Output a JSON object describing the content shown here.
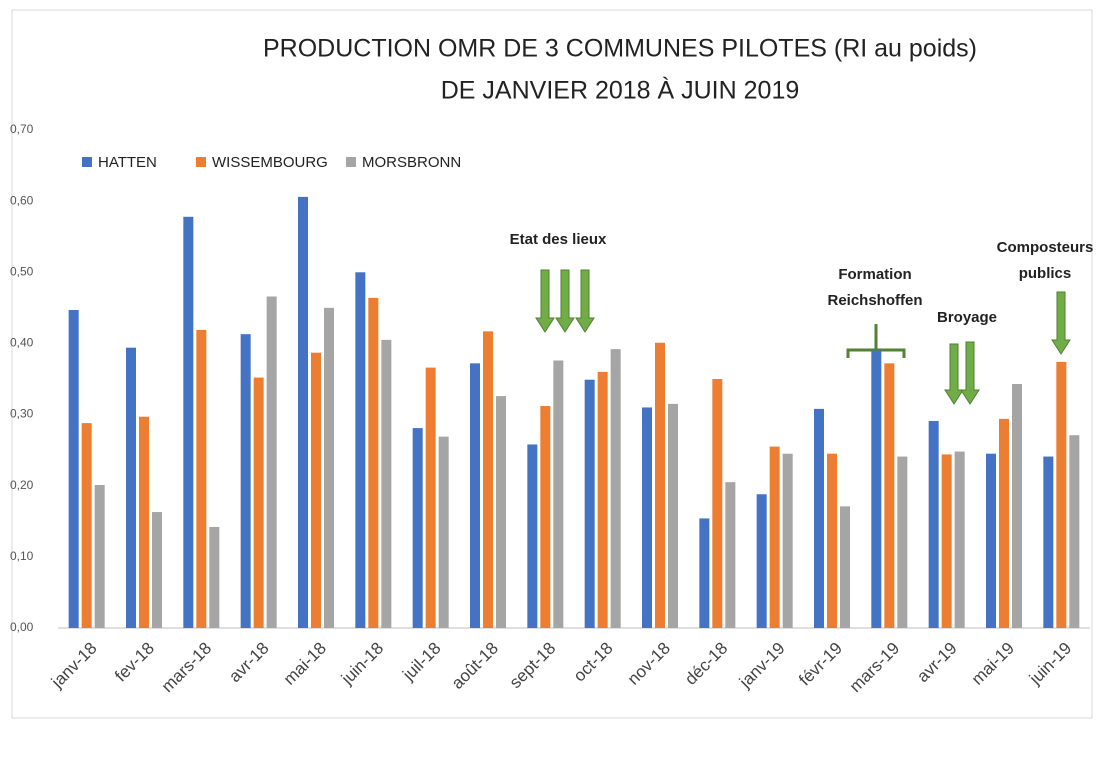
{
  "chart_data": {
    "type": "bar",
    "title": [
      "PRODUCTION OMR DE 3 COMMUNES PILOTES (RI au poids)",
      "DE JANVIER 2018 À JUIN 2019"
    ],
    "categories": [
      "janv-18",
      "fev-18",
      "mars-18",
      "avr-18",
      "mai-18",
      "juin-18",
      "juil-18",
      "août-18",
      "sept-18",
      "oct-18",
      "nov-18",
      "déc-18",
      "janv-19",
      "févr-19",
      "mars-19",
      "avr-19",
      "mai-19",
      "juin-19"
    ],
    "series": [
      {
        "name": "HATTEN",
        "color": "#4472c4",
        "values": [
          0.447,
          0.394,
          0.578,
          0.413,
          0.606,
          0.5,
          0.281,
          0.372,
          0.258,
          0.349,
          0.31,
          0.154,
          0.188,
          0.308,
          0.39,
          0.291,
          0.245,
          0.241
        ]
      },
      {
        "name": "WISSEMBOURG",
        "color": "#ed7d31",
        "values": [
          0.288,
          0.297,
          0.419,
          0.352,
          0.387,
          0.464,
          0.366,
          0.417,
          0.312,
          0.36,
          0.401,
          0.35,
          0.255,
          0.245,
          0.372,
          0.244,
          0.294,
          0.374
        ]
      },
      {
        "name": "MORSBRONN",
        "color": "#a5a5a5",
        "values": [
          0.201,
          0.163,
          0.142,
          0.466,
          0.45,
          0.405,
          0.269,
          0.326,
          0.376,
          0.392,
          0.315,
          0.205,
          0.245,
          0.171,
          0.241,
          0.248,
          0.343,
          0.271
        ]
      }
    ],
    "ylim": [
      0,
      0.7
    ],
    "yticks": [
      {
        "value": 0,
        "label": "0,00"
      },
      {
        "value": 0.1,
        "label": "0,10"
      },
      {
        "value": 0.2,
        "label": "0,20"
      },
      {
        "value": 0.3,
        "label": "0,30"
      },
      {
        "value": 0.4,
        "label": "0,40"
      },
      {
        "value": 0.5,
        "label": "0,50"
      },
      {
        "value": 0.6,
        "label": "0,60"
      },
      {
        "value": 0.7,
        "label": "0,70"
      }
    ],
    "legend": "top-left",
    "annotations": [
      [
        "Etat des lieux"
      ],
      [
        "Formation",
        "Reichshoffen"
      ],
      [
        "Broyage"
      ],
      [
        "Composteurs",
        "publics"
      ]
    ]
  }
}
